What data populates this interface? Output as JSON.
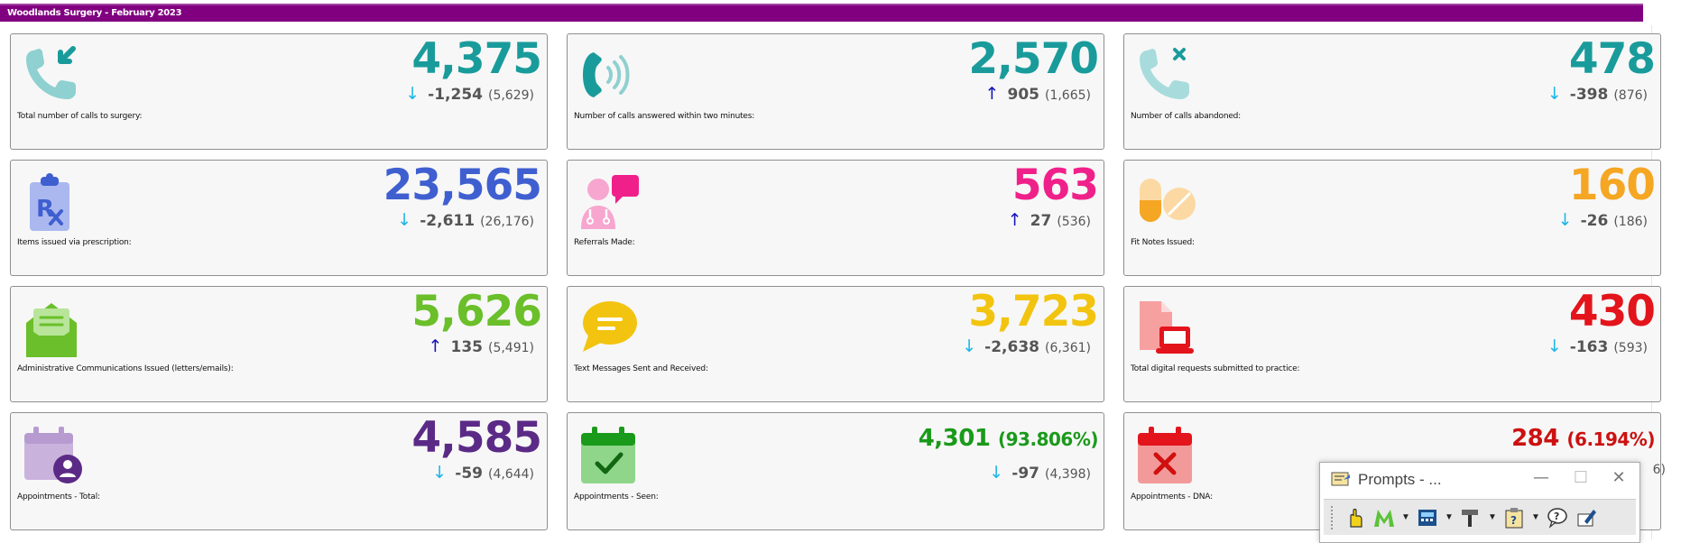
{
  "header": {
    "title": "Woodlands Surgery - February 2023"
  },
  "colors": {
    "header_bg": "#800080",
    "teal": "#1a9b9b",
    "blue": "#3f5fd0",
    "pink": "#f0208a",
    "orange": "#f5a623",
    "green": "#6abf2a",
    "yellow": "#f2c40f",
    "red": "#e3141b",
    "purple": "#5b2a86",
    "dark_green": "#1a9a1a",
    "arrow_down": "#1fb6e6",
    "arrow_up": "#1313b8"
  },
  "tiles": [
    {
      "label": "Total number of calls to surgery:",
      "value": "4,375",
      "direction": "down",
      "change": "-1,254",
      "previous": "(5,629)",
      "icon": "phone-incoming-icon"
    },
    {
      "label": "Number of calls answered within two minutes:",
      "value": "2,570",
      "direction": "up",
      "change": "905",
      "previous": "(1,665)",
      "icon": "phone-ringing-icon"
    },
    {
      "label": "Number of calls abandoned:",
      "value": "478",
      "direction": "down",
      "change": "-398",
      "previous": "(876)",
      "icon": "phone-missed-icon"
    },
    {
      "label": "Items issued via prescription:",
      "value": "23,565",
      "direction": "down",
      "change": "-2,611",
      "previous": "(26,176)",
      "icon": "prescription-clipboard-icon"
    },
    {
      "label": "Referrals Made:",
      "value": "563",
      "direction": "up",
      "change": "27",
      "previous": "(536)",
      "icon": "doctor-chat-icon"
    },
    {
      "label": "Fit Notes Issued:",
      "value": "160",
      "direction": "down",
      "change": "-26",
      "previous": "(186)",
      "icon": "pills-icon"
    },
    {
      "label": "Administrative Communications Issued (letters/emails):",
      "value": "5,626",
      "direction": "up",
      "change": "135",
      "previous": "(5,491)",
      "icon": "open-envelope-icon"
    },
    {
      "label": "Text Messages Sent and Received:",
      "value": "3,723",
      "direction": "down",
      "change": "-2,638",
      "previous": "(6,361)",
      "icon": "chat-bubble-icon"
    },
    {
      "label": "Total digital requests submitted to practice:",
      "value": "430",
      "direction": "down",
      "change": "-163",
      "previous": "(593)",
      "icon": "document-laptop-icon"
    },
    {
      "label": "Appointments - Total:",
      "value": "4,585",
      "direction": "down",
      "change": "-59",
      "previous": "(4,644)",
      "icon": "calendar-user-icon"
    },
    {
      "label": "Appointments - Seen:",
      "value": "4,301",
      "value_pct": "(93.806%)",
      "direction": "down",
      "change": "-97",
      "previous": "(4,398)",
      "icon": "calendar-check-icon"
    },
    {
      "label": "Appointments - DNA:",
      "value": "284",
      "value_pct": "(6.194%)",
      "partial_visible": "6)",
      "icon": "calendar-x-icon"
    }
  ],
  "prompts_window": {
    "title": "Prompts - ...",
    "minimize": "—",
    "maximize": "☐",
    "close": "✕",
    "toolbar_icons": [
      "hand-pointer-icon",
      "m-logo-icon",
      "calculator-icon",
      "hammer-icon",
      "clipboard-help-icon",
      "speech-question-icon",
      "pen-edit-icon"
    ]
  }
}
